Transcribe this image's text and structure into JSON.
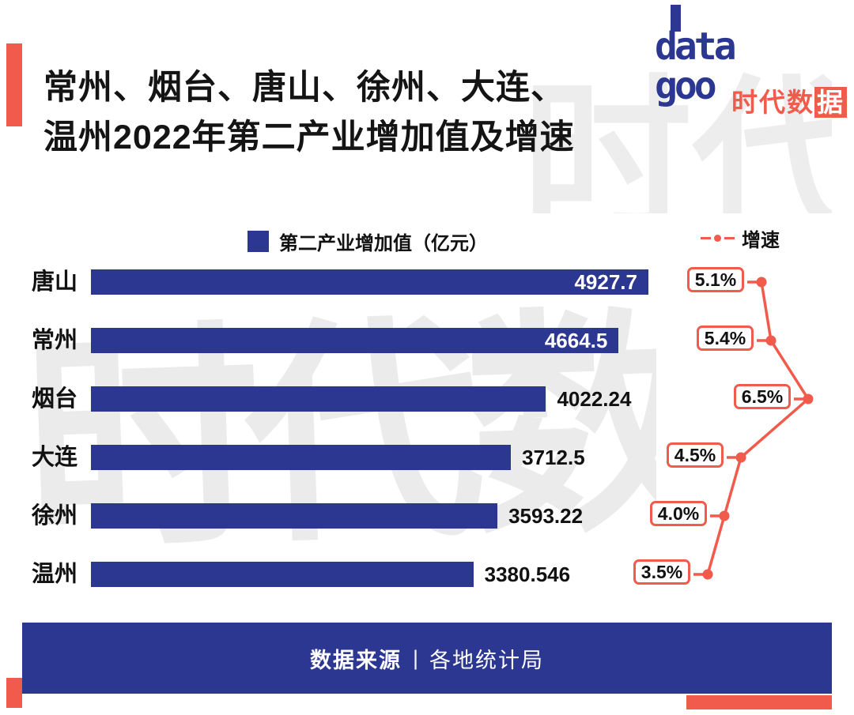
{
  "header": {
    "title_line1": "常州、烟台、唐山、徐州、大连、",
    "title_line2": "温州2022年第二产业增加值及增速"
  },
  "logo": {
    "word_line1": "data",
    "word_line2": "goo",
    "brand_prefix": "时代数",
    "brand_suffix": "据"
  },
  "legend": {
    "bar_label": "第二产业增加值（亿元）",
    "line_label": "增速"
  },
  "chart_data": {
    "type": "bar",
    "orientation": "horizontal",
    "title": "常州、烟台、唐山、徐州、大连、温州2022年第二产业增加值及增速",
    "categories": [
      "唐山",
      "常州",
      "烟台",
      "大连",
      "徐州",
      "温州"
    ],
    "series": [
      {
        "name": "第二产业增加值（亿元）",
        "values": [
          4927.7,
          4664.5,
          4022.24,
          3712.5,
          3593.22,
          3380.546
        ]
      },
      {
        "name": "增速(%)",
        "values": [
          5.1,
          5.4,
          6.5,
          4.5,
          4.0,
          3.5
        ]
      }
    ],
    "value_labels": [
      "4927.7",
      "4664.5",
      "4022.24",
      "3712.5",
      "3593.22",
      "3380.546"
    ],
    "value_label_inside": [
      true,
      true,
      false,
      false,
      false,
      false
    ],
    "growth_labels": [
      "5.1%",
      "5.4%",
      "6.5%",
      "4.5%",
      "4.0%",
      "3.5%"
    ],
    "xlim": [
      0,
      5200
    ],
    "growth_range": [
      3.5,
      6.5
    ],
    "legend_position": "top",
    "colors": {
      "bar": "#2C3792",
      "line": "#F15B4B"
    }
  },
  "footer": {
    "source_label": "数据来源",
    "separator": "|",
    "source_value": "各地统计局"
  },
  "watermark": "时代数据"
}
